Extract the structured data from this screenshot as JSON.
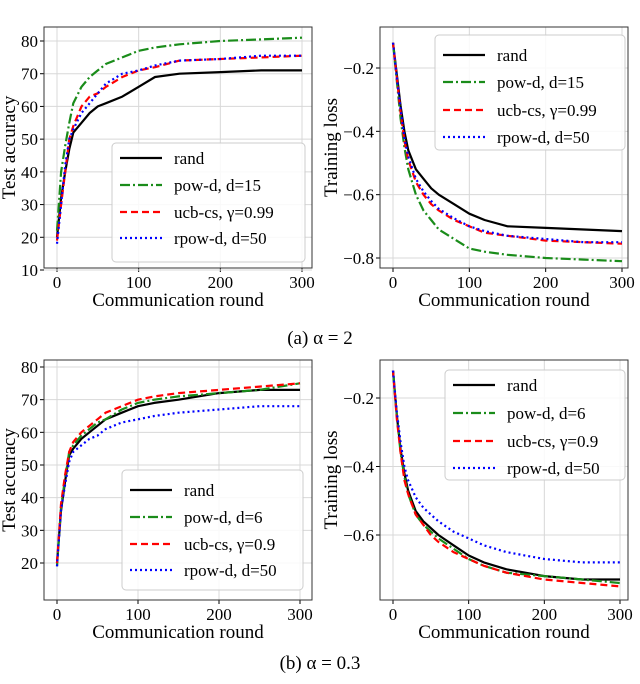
{
  "series_styles": {
    "rand": {
      "color": "#000000",
      "style": "solid"
    },
    "pow": {
      "color": "#1a8c1a",
      "style": "dashdot"
    },
    "ucb": {
      "color": "#ff0000",
      "style": "dashed"
    },
    "rpow": {
      "color": "#0000ff",
      "style": "dotted"
    }
  },
  "captions": {
    "a": "(a) α = 2",
    "b": "(b) α = 0.3"
  },
  "chart_data": [
    {
      "type": "line",
      "title": "",
      "xlabel": "Communication round",
      "ylabel": "Test accuracy",
      "xlim": [
        0,
        300
      ],
      "ylim": [
        10,
        82
      ],
      "grid": true,
      "legend_placement": "lower-right",
      "xticks": [
        0,
        100,
        200,
        300
      ],
      "yticks": [
        10,
        20,
        30,
        40,
        50,
        60,
        70,
        80
      ],
      "x": [
        0,
        5,
        10,
        15,
        20,
        30,
        40,
        50,
        60,
        80,
        100,
        120,
        150,
        200,
        250,
        300
      ],
      "series": [
        {
          "key": "rand",
          "name": "rand",
          "values": [
            20,
            32,
            40,
            47,
            52,
            55,
            58,
            60,
            61,
            63,
            66,
            69,
            70,
            70.5,
            71,
            71
          ]
        },
        {
          "key": "pow",
          "name": "pow-d, d=15",
          "values": [
            22,
            40,
            48,
            55,
            61,
            66,
            69,
            71,
            73,
            75,
            77,
            78,
            79,
            80,
            80.5,
            81
          ]
        },
        {
          "key": "ucb",
          "name": "ucb-cs, γ=0.99",
          "values": [
            19,
            30,
            40,
            50,
            54,
            60,
            63,
            64,
            66,
            69,
            71,
            72,
            74,
            74.5,
            75,
            75.5
          ]
        },
        {
          "key": "rpow",
          "name": "rpow-d, d=50",
          "values": [
            18,
            30,
            42,
            50,
            53,
            58,
            61,
            64,
            67,
            70,
            71,
            72.5,
            74,
            74.5,
            75.5,
            75.5
          ]
        }
      ]
    },
    {
      "type": "line",
      "title": "",
      "xlabel": "Communication round",
      "ylabel": "Training loss",
      "xlim": [
        0,
        300
      ],
      "ylim": [
        -0.83,
        -0.1
      ],
      "grid": true,
      "legend_placement": "upper-right",
      "xticks": [
        0,
        100,
        200,
        300
      ],
      "yticks": [
        -0.2,
        -0.4,
        -0.6,
        -0.8
      ],
      "x": [
        0,
        5,
        10,
        15,
        20,
        30,
        40,
        50,
        60,
        80,
        100,
        120,
        150,
        200,
        250,
        300
      ],
      "series": [
        {
          "key": "rand",
          "name": "rand",
          "values": [
            -0.12,
            -0.22,
            -0.32,
            -0.4,
            -0.46,
            -0.52,
            -0.55,
            -0.58,
            -0.6,
            -0.63,
            -0.66,
            -0.68,
            -0.7,
            -0.705,
            -0.71,
            -0.715
          ]
        },
        {
          "key": "pow",
          "name": "pow-d, d=15",
          "values": [
            -0.12,
            -0.24,
            -0.36,
            -0.45,
            -0.52,
            -0.6,
            -0.65,
            -0.68,
            -0.71,
            -0.74,
            -0.77,
            -0.78,
            -0.79,
            -0.8,
            -0.805,
            -0.81
          ]
        },
        {
          "key": "ucb",
          "name": "ucb-cs, γ=0.99",
          "values": [
            -0.12,
            -0.23,
            -0.34,
            -0.43,
            -0.49,
            -0.56,
            -0.6,
            -0.63,
            -0.65,
            -0.68,
            -0.7,
            -0.72,
            -0.73,
            -0.745,
            -0.75,
            -0.755
          ]
        },
        {
          "key": "rpow",
          "name": "rpow-d, d=50",
          "values": [
            -0.12,
            -0.23,
            -0.33,
            -0.42,
            -0.48,
            -0.55,
            -0.59,
            -0.62,
            -0.645,
            -0.675,
            -0.7,
            -0.715,
            -0.73,
            -0.74,
            -0.75,
            -0.75
          ]
        }
      ]
    },
    {
      "type": "line",
      "title": "",
      "xlabel": "Communication round",
      "ylabel": "Test accuracy",
      "xlim": [
        0,
        300
      ],
      "ylim": [
        17,
        80
      ],
      "grid": true,
      "legend_placement": "lower-right",
      "xticks": [
        0,
        100,
        200,
        300
      ],
      "yticks": [
        20,
        30,
        40,
        50,
        60,
        70,
        80
      ],
      "x": [
        0,
        5,
        10,
        15,
        20,
        30,
        40,
        50,
        60,
        80,
        100,
        120,
        150,
        200,
        250,
        300
      ],
      "series": [
        {
          "key": "rand",
          "name": "rand",
          "values": [
            20,
            36,
            45,
            53,
            55,
            58,
            60,
            62,
            64,
            66,
            68,
            69,
            70,
            72,
            73,
            73
          ]
        },
        {
          "key": "pow",
          "name": "pow-d, d=6",
          "values": [
            19,
            37,
            46,
            54,
            56,
            59,
            61,
            63,
            64,
            67,
            69,
            70,
            71,
            72,
            73,
            75
          ]
        },
        {
          "key": "ucb",
          "name": "ucb-cs, γ=0.9",
          "values": [
            20,
            38,
            47,
            54,
            57,
            60,
            62,
            64,
            66,
            68,
            70,
            71,
            72,
            73,
            74,
            75
          ]
        },
        {
          "key": "rpow",
          "name": "rpow-d, d=50",
          "values": [
            19,
            36,
            44,
            51,
            54,
            56,
            58,
            59,
            61,
            63,
            64,
            65,
            66,
            67,
            68,
            68
          ]
        }
      ]
    },
    {
      "type": "line",
      "title": "",
      "xlabel": "Communication round",
      "ylabel": "Training loss",
      "xlim": [
        0,
        300
      ],
      "ylim": [
        -0.77,
        -0.11
      ],
      "grid": true,
      "legend_placement": "upper-right",
      "xticks": [
        0,
        100,
        200,
        300
      ],
      "yticks": [
        -0.2,
        -0.4,
        -0.6
      ],
      "x": [
        0,
        5,
        10,
        15,
        20,
        30,
        40,
        50,
        60,
        80,
        100,
        120,
        150,
        200,
        250,
        300
      ],
      "series": [
        {
          "key": "rand",
          "name": "rand",
          "values": [
            -0.12,
            -0.25,
            -0.35,
            -0.42,
            -0.47,
            -0.53,
            -0.56,
            -0.58,
            -0.6,
            -0.63,
            -0.66,
            -0.68,
            -0.7,
            -0.72,
            -0.73,
            -0.73
          ]
        },
        {
          "key": "pow",
          "name": "pow-d, d=6",
          "values": [
            -0.12,
            -0.25,
            -0.36,
            -0.43,
            -0.48,
            -0.54,
            -0.57,
            -0.59,
            -0.61,
            -0.64,
            -0.67,
            -0.69,
            -0.71,
            -0.72,
            -0.73,
            -0.74
          ]
        },
        {
          "key": "ucb",
          "name": "ucb-cs, γ=0.9",
          "values": [
            -0.12,
            -0.26,
            -0.36,
            -0.44,
            -0.48,
            -0.54,
            -0.57,
            -0.6,
            -0.62,
            -0.65,
            -0.67,
            -0.69,
            -0.71,
            -0.73,
            -0.74,
            -0.75
          ]
        },
        {
          "key": "rpow",
          "name": "rpow-d, d=50",
          "values": [
            -0.12,
            -0.24,
            -0.33,
            -0.4,
            -0.44,
            -0.49,
            -0.52,
            -0.54,
            -0.56,
            -0.59,
            -0.61,
            -0.63,
            -0.65,
            -0.67,
            -0.68,
            -0.68
          ]
        }
      ]
    }
  ]
}
